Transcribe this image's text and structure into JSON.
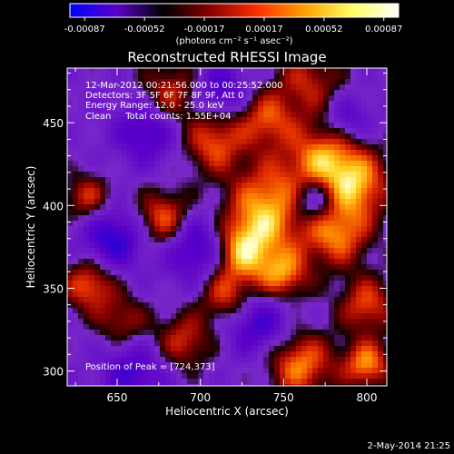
{
  "colorbar": {
    "ticks": [
      "-0.00087",
      "-0.00052",
      "-0.00017",
      "0.00017",
      "0.00052",
      "0.00087"
    ],
    "unit_label": "(photons cm⁻² s⁻¹ asec⁻²)",
    "range": [
      -0.00087,
      0.00087
    ],
    "gradient": [
      "#0000ff",
      "#5a00c8",
      "#000000",
      "#8a0000",
      "#ff3000",
      "#ffa000",
      "#ffff60",
      "#ffffff"
    ]
  },
  "title": "Reconstructed RHESSI Image",
  "info": {
    "line1": "12-Mar-2012 00:21:56.000 to 00:25:52.000",
    "line2": "Detectors: 3F 5F 6F 7F 8F 9F, Att 0",
    "line3": "Energy Range: 12.0 - 25.0 keV",
    "line4": "Clean     Total counts: 1.55E+04"
  },
  "peak_label": "Position of Peak = [724,373]",
  "footer_date": "2-May-2014 21:25",
  "chart_data": {
    "type": "heatmap",
    "title": "Reconstructed RHESSI Image",
    "xlabel": "Heliocentric X (arcsec)",
    "ylabel": "Heliocentric Y (arcsec)",
    "xlim": [
      620,
      812
    ],
    "ylim": [
      291,
      483
    ],
    "xticks": [
      650,
      700,
      750,
      800
    ],
    "yticks": [
      300,
      350,
      400,
      450
    ],
    "peak": [
      724,
      373
    ],
    "bright_regions": [
      {
        "x": 724,
        "y": 373,
        "level": 1.0,
        "size": 14
      },
      {
        "x": 742,
        "y": 400,
        "level": 0.9,
        "size": 18
      },
      {
        "x": 678,
        "y": 392,
        "level": 0.78,
        "size": 12
      },
      {
        "x": 775,
        "y": 428,
        "level": 0.85,
        "size": 16
      },
      {
        "x": 782,
        "y": 383,
        "level": 0.8,
        "size": 14
      },
      {
        "x": 795,
        "y": 412,
        "level": 0.75,
        "size": 14
      },
      {
        "x": 708,
        "y": 438,
        "level": 0.7,
        "size": 13
      },
      {
        "x": 740,
        "y": 452,
        "level": 0.65,
        "size": 12
      },
      {
        "x": 682,
        "y": 468,
        "level": 0.6,
        "size": 13
      },
      {
        "x": 765,
        "y": 475,
        "level": 0.55,
        "size": 14
      },
      {
        "x": 633,
        "y": 352,
        "level": 0.75,
        "size": 11
      },
      {
        "x": 632,
        "y": 405,
        "level": 0.6,
        "size": 10
      },
      {
        "x": 690,
        "y": 318,
        "level": 0.6,
        "size": 12
      },
      {
        "x": 760,
        "y": 304,
        "level": 0.82,
        "size": 14
      },
      {
        "x": 800,
        "y": 304,
        "level": 0.85,
        "size": 10
      },
      {
        "x": 750,
        "y": 358,
        "level": 0.75,
        "size": 11
      },
      {
        "x": 715,
        "y": 345,
        "level": 0.6,
        "size": 11
      },
      {
        "x": 800,
        "y": 340,
        "level": 0.68,
        "size": 12
      },
      {
        "x": 653,
        "y": 330,
        "level": 0.5,
        "size": 11
      }
    ],
    "dark_regions": [
      {
        "x": 700,
        "y": 375,
        "level": -0.8,
        "size": 14
      },
      {
        "x": 648,
        "y": 380,
        "level": -0.7,
        "size": 13
      },
      {
        "x": 768,
        "y": 403,
        "level": -0.75,
        "size": 10
      },
      {
        "x": 668,
        "y": 445,
        "level": -0.6,
        "size": 13
      },
      {
        "x": 735,
        "y": 328,
        "level": -0.6,
        "size": 13
      },
      {
        "x": 660,
        "y": 300,
        "level": -0.55,
        "size": 13
      },
      {
        "x": 788,
        "y": 452,
        "level": -0.5,
        "size": 10
      },
      {
        "x": 712,
        "y": 470,
        "level": -0.55,
        "size": 11
      }
    ]
  }
}
